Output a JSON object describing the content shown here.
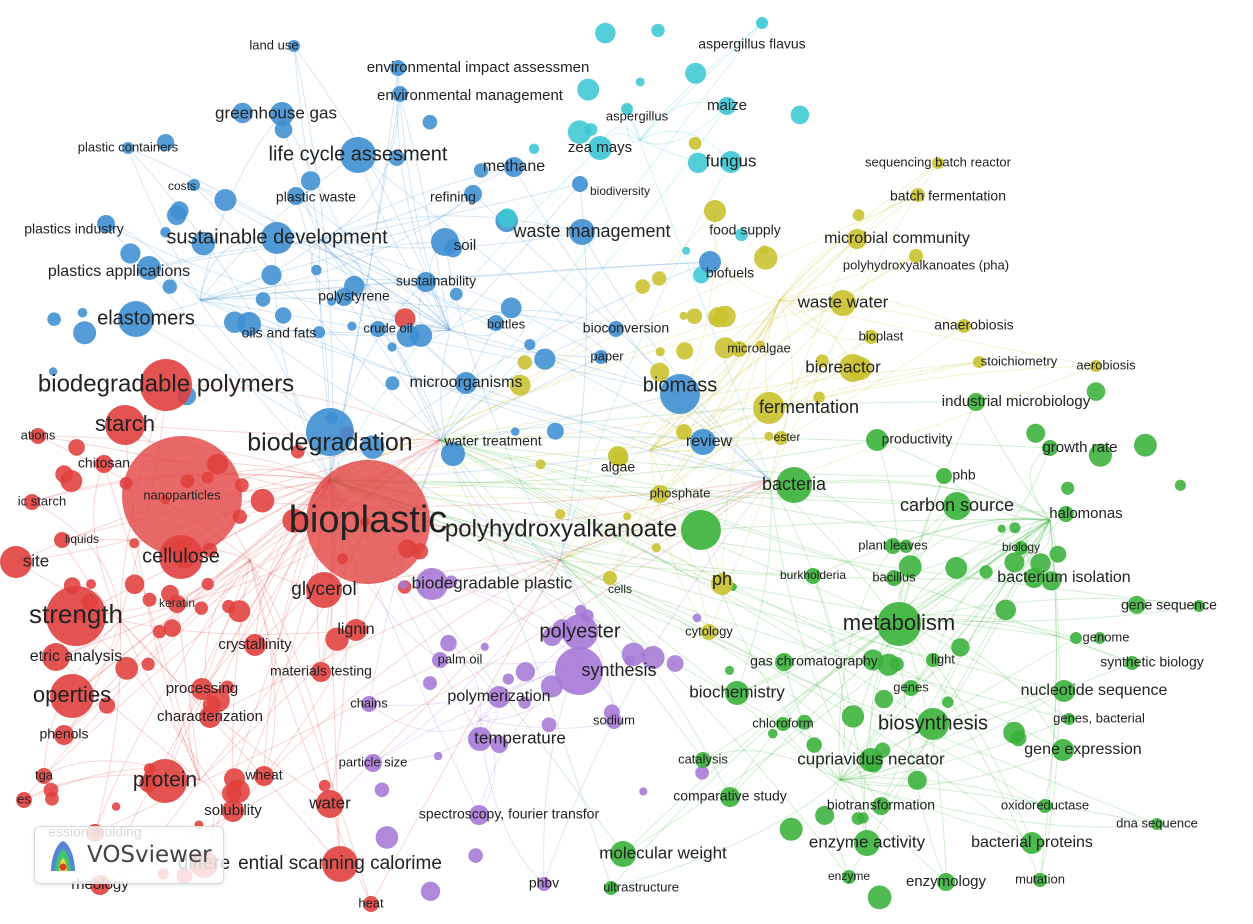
{
  "app": {
    "brand": "VOSviewer"
  },
  "clusters": {
    "red": "#e0403e",
    "blue": "#3f8fd2",
    "green": "#39b13a",
    "yellow": "#c9c12e",
    "purple": "#a679d6",
    "cyan": "#3cc7d4"
  },
  "labels": [
    {
      "t": "land use",
      "c": "blue"
    },
    {
      "t": "environmental impact assessmen",
      "c": "blue"
    },
    {
      "t": "environmental management",
      "c": "blue"
    },
    {
      "t": "greenhouse gas",
      "c": "blue"
    },
    {
      "t": "plastic containers",
      "c": "blue"
    },
    {
      "t": "life cycle assesment",
      "c": "blue"
    },
    {
      "t": "costs",
      "c": "blue"
    },
    {
      "t": "plastic waste",
      "c": "blue"
    },
    {
      "t": "refining",
      "c": "blue"
    },
    {
      "t": "methane",
      "c": "blue"
    },
    {
      "t": "biodiversity",
      "c": "blue"
    },
    {
      "t": "plastics industry",
      "c": "blue"
    },
    {
      "t": "sustainable development",
      "c": "blue"
    },
    {
      "t": "soil",
      "c": "blue"
    },
    {
      "t": "waste management",
      "c": "blue"
    },
    {
      "t": "plastics applications",
      "c": "blue"
    },
    {
      "t": "sustainability",
      "c": "blue"
    },
    {
      "t": "polystyrene",
      "c": "blue"
    },
    {
      "t": "elastomers",
      "c": "blue"
    },
    {
      "t": "oils and fats",
      "c": "blue"
    },
    {
      "t": "crude oil",
      "c": "blue"
    },
    {
      "t": "bottles",
      "c": "blue"
    },
    {
      "t": "bioconversion",
      "c": "blue"
    },
    {
      "t": "paper",
      "c": "blue"
    },
    {
      "t": "biomass",
      "c": "blue"
    },
    {
      "t": "microorganisms",
      "c": "blue"
    },
    {
      "t": "biodegradation",
      "c": "blue"
    },
    {
      "t": "water treatment",
      "c": "blue"
    },
    {
      "t": "biofuels",
      "c": "blue"
    },
    {
      "t": "review",
      "c": "blue"
    },
    {
      "t": "aspergillus flavus",
      "c": "cyan"
    },
    {
      "t": "aspergillus",
      "c": "cyan"
    },
    {
      "t": "maize",
      "c": "cyan"
    },
    {
      "t": "zea mays",
      "c": "cyan"
    },
    {
      "t": "fungus",
      "c": "cyan"
    },
    {
      "t": "sequencing batch reactor",
      "c": "yellow"
    },
    {
      "t": "batch fermentation",
      "c": "yellow"
    },
    {
      "t": "food supply",
      "c": "yellow"
    },
    {
      "t": "microbial community",
      "c": "yellow"
    },
    {
      "t": "polyhydroxyalkanoates (pha)",
      "c": "yellow"
    },
    {
      "t": "waste water",
      "c": "yellow"
    },
    {
      "t": "anaerobiosis",
      "c": "yellow"
    },
    {
      "t": "bioplast",
      "c": "yellow"
    },
    {
      "t": "microalgae",
      "c": "yellow"
    },
    {
      "t": "stoichiometry",
      "c": "yellow"
    },
    {
      "t": "aerobiosis",
      "c": "yellow"
    },
    {
      "t": "bioreactor",
      "c": "yellow"
    },
    {
      "t": "fermentation",
      "c": "yellow"
    },
    {
      "t": "ester",
      "c": "yellow"
    },
    {
      "t": "algae",
      "c": "yellow"
    },
    {
      "t": "phosphate",
      "c": "yellow"
    },
    {
      "t": "ph",
      "c": "yellow"
    },
    {
      "t": "cells",
      "c": "yellow"
    },
    {
      "t": "cytology",
      "c": "yellow"
    },
    {
      "t": "industrial microbiology",
      "c": "green"
    },
    {
      "t": "productivity",
      "c": "green"
    },
    {
      "t": "growth rate",
      "c": "green"
    },
    {
      "t": "phb",
      "c": "green"
    },
    {
      "t": "bacteria",
      "c": "green"
    },
    {
      "t": "carbon source",
      "c": "green"
    },
    {
      "t": "halomonas",
      "c": "green"
    },
    {
      "t": "polyhydroxyalkanoate",
      "c": "green"
    },
    {
      "t": "plant leaves",
      "c": "green"
    },
    {
      "t": "biology",
      "c": "green"
    },
    {
      "t": "burkholderia",
      "c": "green"
    },
    {
      "t": "bacillus",
      "c": "green"
    },
    {
      "t": "bacterium isolation",
      "c": "green"
    },
    {
      "t": "gene sequence",
      "c": "green"
    },
    {
      "t": "metabolism",
      "c": "green"
    },
    {
      "t": "genome",
      "c": "green"
    },
    {
      "t": "light",
      "c": "green"
    },
    {
      "t": "synthetic biology",
      "c": "green"
    },
    {
      "t": "gas chromatography",
      "c": "green"
    },
    {
      "t": "genes",
      "c": "green"
    },
    {
      "t": "nucleotide sequence",
      "c": "green"
    },
    {
      "t": "biochemistry",
      "c": "green"
    },
    {
      "t": "genes, bacterial",
      "c": "green"
    },
    {
      "t": "chloroform",
      "c": "green"
    },
    {
      "t": "biosynthesis",
      "c": "green"
    },
    {
      "t": "gene expression",
      "c": "green"
    },
    {
      "t": "catalysis",
      "c": "green"
    },
    {
      "t": "cupriavidus necator",
      "c": "green"
    },
    {
      "t": "comparative study",
      "c": "green"
    },
    {
      "t": "biotransformation",
      "c": "green"
    },
    {
      "t": "oxidoreductase",
      "c": "green"
    },
    {
      "t": "dna sequence",
      "c": "green"
    },
    {
      "t": "enzyme activity",
      "c": "green"
    },
    {
      "t": "bacterial proteins",
      "c": "green"
    },
    {
      "t": "molecular weight",
      "c": "green"
    },
    {
      "t": "enzyme",
      "c": "green"
    },
    {
      "t": "enzymology",
      "c": "green"
    },
    {
      "t": "mutation",
      "c": "green"
    },
    {
      "t": "ultrastructure",
      "c": "green"
    },
    {
      "t": "phbv",
      "c": "purple"
    },
    {
      "t": "polyester",
      "c": "purple"
    },
    {
      "t": "synthesis",
      "c": "purple"
    },
    {
      "t": "polymerization",
      "c": "purple"
    },
    {
      "t": "sodium",
      "c": "purple"
    },
    {
      "t": "temperature",
      "c": "purple"
    },
    {
      "t": "spectroscopy, fourier transfor",
      "c": "purple"
    },
    {
      "t": "palm oil",
      "c": "purple"
    },
    {
      "t": "biodegradable plastic",
      "c": "purple"
    },
    {
      "t": "chains",
      "c": "purple"
    },
    {
      "t": "particle size",
      "c": "purple"
    },
    {
      "t": "biodegradable polymers",
      "c": "red"
    },
    {
      "t": "starch",
      "c": "red"
    },
    {
      "t": "ations",
      "c": "red"
    },
    {
      "t": "chitosan",
      "c": "red"
    },
    {
      "t": "ic starch",
      "c": "red"
    },
    {
      "t": "nanoparticles",
      "c": "red"
    },
    {
      "t": "bioplastic",
      "c": "red"
    },
    {
      "t": "liquids",
      "c": "red"
    },
    {
      "t": "cellulose",
      "c": "red"
    },
    {
      "t": "site",
      "c": "red"
    },
    {
      "t": "glycerol",
      "c": "red"
    },
    {
      "t": "strength",
      "c": "red"
    },
    {
      "t": "keratin",
      "c": "red"
    },
    {
      "t": "lignin",
      "c": "red"
    },
    {
      "t": "crystallinity",
      "c": "red"
    },
    {
      "t": "etric analysis",
      "c": "red"
    },
    {
      "t": "materials testing",
      "c": "red"
    },
    {
      "t": "operties",
      "c": "red"
    },
    {
      "t": "processing",
      "c": "red"
    },
    {
      "t": "characterization",
      "c": "red"
    },
    {
      "t": "phenols",
      "c": "red"
    },
    {
      "t": "protein",
      "c": "red"
    },
    {
      "t": "wheat",
      "c": "red"
    },
    {
      "t": "tga",
      "c": "red"
    },
    {
      "t": "es",
      "c": "red"
    },
    {
      "t": "water",
      "c": "red"
    },
    {
      "t": "solubility",
      "c": "red"
    },
    {
      "t": "ession molding",
      "c": "red"
    },
    {
      "t": "ential scanning calorime",
      "c": "red"
    },
    {
      "t": "differe",
      "c": "red"
    },
    {
      "t": "rheology",
      "c": "red"
    },
    {
      "t": "heat",
      "c": "red"
    }
  ]
}
